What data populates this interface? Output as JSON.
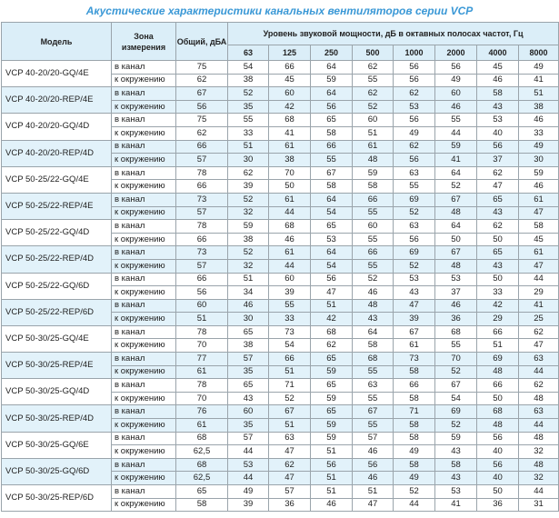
{
  "title": "Акустические характеристики канальных вентиляторов  серии VCP",
  "table": {
    "headers": {
      "model": "Модель",
      "zone": "Зона измерения",
      "total": "Общий, дБА",
      "band_group": "Уровень звуковой мощности, дБ в октавных полосах частот, Гц",
      "bands": [
        63,
        125,
        250,
        500,
        1000,
        2000,
        4000,
        8000
      ]
    },
    "rows": [
      {
        "model": "VCP 40-20/20-GQ/4E",
        "measurements": [
          {
            "zone": "в канал",
            "total": 75,
            "bands": [
              54,
              66,
              64,
              62,
              56,
              56,
              45,
              49
            ]
          },
          {
            "zone": "к окружению",
            "total": 62,
            "bands": [
              38,
              45,
              59,
              55,
              56,
              49,
              46,
              41
            ]
          }
        ]
      },
      {
        "model": "VCP 40-20/20-REP/4E",
        "measurements": [
          {
            "zone": "в канал",
            "total": 67,
            "bands": [
              52,
              60,
              64,
              62,
              62,
              60,
              58,
              51
            ]
          },
          {
            "zone": "к окружению",
            "total": 56,
            "bands": [
              35,
              42,
              56,
              52,
              53,
              46,
              43,
              38
            ]
          }
        ]
      },
      {
        "model": "VCP 40-20/20-GQ/4D",
        "measurements": [
          {
            "zone": "в канал",
            "total": 75,
            "bands": [
              55,
              68,
              65,
              60,
              56,
              55,
              53,
              46
            ]
          },
          {
            "zone": "к окружению",
            "total": 62,
            "bands": [
              33,
              41,
              58,
              51,
              49,
              44,
              40,
              33
            ]
          }
        ]
      },
      {
        "model": "VCP 40-20/20-REP/4D",
        "measurements": [
          {
            "zone": "в канал",
            "total": 66,
            "bands": [
              51,
              61,
              66,
              61,
              62,
              59,
              56,
              49
            ]
          },
          {
            "zone": "к окружению",
            "total": 57,
            "bands": [
              30,
              38,
              55,
              48,
              56,
              41,
              37,
              30
            ]
          }
        ]
      },
      {
        "model": "VCP 50-25/22-GQ/4E",
        "measurements": [
          {
            "zone": "в канал",
            "total": 78,
            "bands": [
              62,
              70,
              67,
              59,
              63,
              64,
              62,
              59
            ]
          },
          {
            "zone": "к окружению",
            "total": 66,
            "bands": [
              39,
              50,
              58,
              58,
              55,
              52,
              47,
              46
            ]
          }
        ]
      },
      {
        "model": "VCP 50-25/22-REP/4E",
        "measurements": [
          {
            "zone": "в канал",
            "total": 73,
            "bands": [
              52,
              61,
              64,
              66,
              69,
              67,
              65,
              61
            ]
          },
          {
            "zone": "к окружению",
            "total": 57,
            "bands": [
              32,
              44,
              54,
              55,
              52,
              48,
              43,
              47
            ]
          }
        ]
      },
      {
        "model": "VCP 50-25/22-GQ/4D",
        "measurements": [
          {
            "zone": "в канал",
            "total": 78,
            "bands": [
              59,
              68,
              65,
              60,
              63,
              64,
              62,
              58
            ]
          },
          {
            "zone": "к окружению",
            "total": 66,
            "bands": [
              38,
              46,
              53,
              55,
              56,
              50,
              50,
              45
            ]
          }
        ]
      },
      {
        "model": "VCP 50-25/22-REP/4D",
        "measurements": [
          {
            "zone": "в канал",
            "total": 73,
            "bands": [
              52,
              61,
              64,
              66,
              69,
              67,
              65,
              61
            ]
          },
          {
            "zone": "к окружению",
            "total": 57,
            "bands": [
              32,
              44,
              54,
              55,
              52,
              48,
              43,
              47
            ]
          }
        ]
      },
      {
        "model": "VCP 50-25/22-GQ/6D",
        "measurements": [
          {
            "zone": "в канал",
            "total": 66,
            "bands": [
              51,
              60,
              56,
              52,
              53,
              53,
              50,
              44
            ]
          },
          {
            "zone": "к окружению",
            "total": 56,
            "bands": [
              34,
              39,
              47,
              46,
              43,
              37,
              33,
              29
            ]
          }
        ]
      },
      {
        "model": "VCP 50-25/22-REP/6D",
        "measurements": [
          {
            "zone": "в канал",
            "total": 60,
            "bands": [
              46,
              55,
              51,
              48,
              47,
              46,
              42,
              41
            ]
          },
          {
            "zone": "к окружению",
            "total": 51,
            "bands": [
              30,
              33,
              42,
              43,
              39,
              36,
              29,
              25
            ]
          }
        ]
      },
      {
        "model": "VCP 50-30/25-GQ/4E",
        "measurements": [
          {
            "zone": "в канал",
            "total": 78,
            "bands": [
              65,
              73,
              68,
              64,
              67,
              68,
              66,
              62
            ]
          },
          {
            "zone": "к окружению",
            "total": 70,
            "bands": [
              38,
              54,
              62,
              58,
              61,
              55,
              51,
              47
            ]
          }
        ]
      },
      {
        "model": "VCP 50-30/25-REP/4E",
        "measurements": [
          {
            "zone": "в канал",
            "total": 77,
            "bands": [
              57,
              66,
              65,
              68,
              73,
              70,
              69,
              63
            ]
          },
          {
            "zone": "к окружению",
            "total": 61,
            "bands": [
              35,
              51,
              59,
              55,
              58,
              52,
              48,
              44
            ]
          }
        ]
      },
      {
        "model": "VCP 50-30/25-GQ/4D",
        "measurements": [
          {
            "zone": "в канал",
            "total": 78,
            "bands": [
              65,
              71,
              65,
              63,
              66,
              67,
              66,
              62
            ]
          },
          {
            "zone": "к окружению",
            "total": 70,
            "bands": [
              43,
              52,
              59,
              55,
              58,
              54,
              50,
              48
            ]
          }
        ]
      },
      {
        "model": "VCP 50-30/25-REP/4D",
        "measurements": [
          {
            "zone": "в канал",
            "total": 76,
            "bands": [
              60,
              67,
              65,
              67,
              71,
              69,
              68,
              63
            ]
          },
          {
            "zone": "к окружению",
            "total": 61,
            "bands": [
              35,
              51,
              59,
              55,
              58,
              52,
              48,
              44
            ]
          }
        ]
      },
      {
        "model": "VCP 50-30/25-GQ/6E",
        "measurements": [
          {
            "zone": "в канал",
            "total": 68,
            "bands": [
              57,
              63,
              59,
              57,
              58,
              59,
              56,
              48
            ]
          },
          {
            "zone": "к окружению",
            "total": "62,5",
            "bands": [
              44,
              47,
              51,
              46,
              49,
              43,
              40,
              32
            ]
          }
        ]
      },
      {
        "model": "VCP 50-30/25-GQ/6D",
        "measurements": [
          {
            "zone": "в канал",
            "total": 68,
            "bands": [
              53,
              62,
              56,
              56,
              58,
              58,
              56,
              48
            ]
          },
          {
            "zone": "к окружению",
            "total": "62,5",
            "bands": [
              44,
              47,
              51,
              46,
              49,
              43,
              40,
              32
            ]
          }
        ]
      },
      {
        "model": "VCP 50-30/25-REP/6D",
        "measurements": [
          {
            "zone": "в канал",
            "total": 65,
            "bands": [
              49,
              57,
              51,
              51,
              52,
              53,
              50,
              44
            ]
          },
          {
            "zone": "к окружению",
            "total": 58,
            "bands": [
              39,
              36,
              46,
              47,
              44,
              41,
              36,
              31
            ]
          }
        ]
      }
    ]
  }
}
